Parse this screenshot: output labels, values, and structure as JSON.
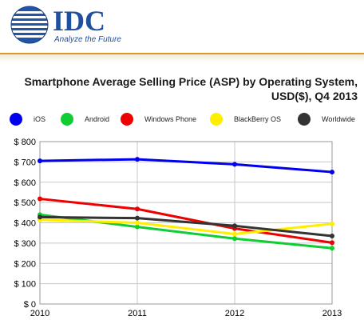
{
  "header": {
    "logo_text": "IDC",
    "tagline": "Analyze the Future",
    "colors": {
      "brand": "#1f4f9f",
      "rule": "#d89a2e"
    }
  },
  "chart_data": {
    "type": "line",
    "title_line1": "Smartphone Average Selling Price (ASP) by Operating System,",
    "title_line2": "USD($), Q4 2013",
    "categories": [
      "2010",
      "2011",
      "2012",
      "2013"
    ],
    "y_tick_labels": [
      "$ 800",
      "$ 700",
      "$ 600",
      "$ 500",
      "$ 400",
      "$ 300",
      "$ 200",
      "$ 100",
      "$ 0"
    ],
    "ylim": [
      0,
      800
    ],
    "ystep": 100,
    "grid": true,
    "legend_position": "top",
    "series": [
      {
        "name": "iOS",
        "color": "#0000ee",
        "values": [
          705,
          713,
          688,
          650
        ]
      },
      {
        "name": "Android",
        "color": "#11cc33",
        "values": [
          440,
          380,
          322,
          275
        ]
      },
      {
        "name": "Windows Phone",
        "color": "#ee0000",
        "values": [
          518,
          468,
          372,
          302
        ]
      },
      {
        "name": "BlackBerry OS",
        "color": "#ffee00",
        "values": [
          415,
          400,
          345,
          395
        ]
      },
      {
        "name": "Worldwide",
        "color": "#333333",
        "values": [
          428,
          423,
          385,
          335
        ]
      }
    ]
  }
}
